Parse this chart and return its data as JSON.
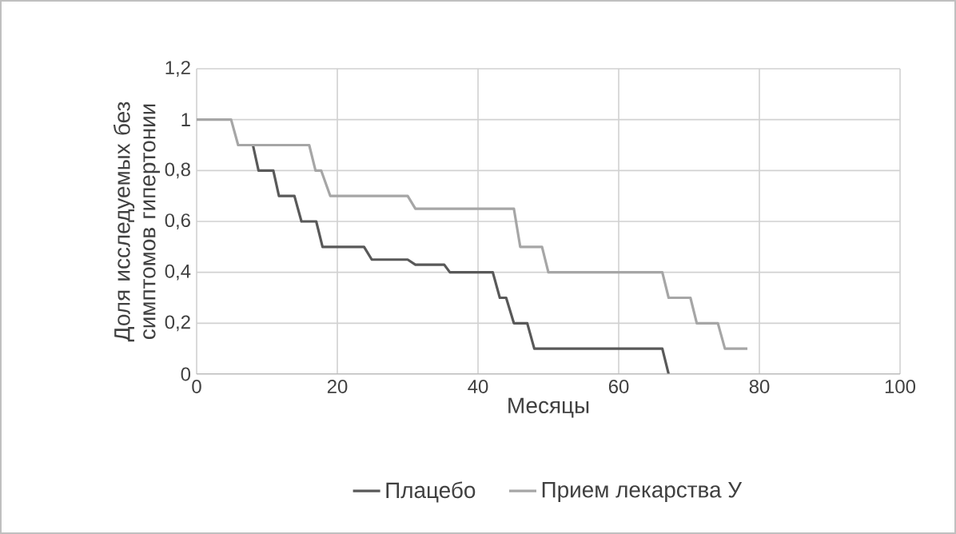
{
  "chart_data": {
    "type": "line",
    "xlabel": "Месяцы",
    "ylabel": "Доля исследуемых без симптомов гипертонии",
    "xlim": [
      0,
      100
    ],
    "xticks": [
      0,
      20,
      40,
      60,
      80,
      100
    ],
    "ylim": [
      0,
      1.2
    ],
    "yticks": [
      {
        "value": 0,
        "label": "0"
      },
      {
        "value": 0.2,
        "label": "0,2"
      },
      {
        "value": 0.4,
        "label": "0,4"
      },
      {
        "value": 0.6,
        "label": "0,6"
      },
      {
        "value": 0.8,
        "label": "0,8"
      },
      {
        "value": 1,
        "label": "1"
      },
      {
        "value": 1.2,
        "label": "1,2"
      }
    ],
    "grid": true,
    "legend": "bottom",
    "marker": "none",
    "line_style": "solid",
    "series": [
      {
        "name": "Плацебо",
        "color": "#595959",
        "x": [
          8,
          8.8,
          10.9,
          11.7,
          13.9,
          14.9,
          17,
          17.9,
          23.8,
          24.9,
          30,
          31.1,
          35.2,
          36,
          42.1,
          43.1,
          44,
          45.1,
          47,
          48,
          66.2,
          67.1
        ],
        "values": [
          0.9,
          0.8,
          0.8,
          0.7,
          0.7,
          0.6,
          0.6,
          0.5,
          0.5,
          0.45,
          0.45,
          0.43,
          0.43,
          0.4,
          0.4,
          0.3,
          0.3,
          0.2,
          0.2,
          0.1,
          0.1,
          0
        ]
      },
      {
        "name": "Прием лекарства У",
        "color": "#a6a6a6",
        "x": [
          0,
          4.9,
          5.9,
          16,
          16.9,
          17.7,
          19,
          30,
          31.1,
          45.1,
          46,
          49.1,
          50,
          66.2,
          67.1,
          70.2,
          71.1,
          74.1,
          75.1,
          78.3
        ],
        "values": [
          1,
          1,
          0.9,
          0.9,
          0.8,
          0.8,
          0.7,
          0.7,
          0.65,
          0.65,
          0.5,
          0.5,
          0.4,
          0.4,
          0.3,
          0.3,
          0.2,
          0.2,
          0.1,
          0.1
        ]
      }
    ]
  }
}
